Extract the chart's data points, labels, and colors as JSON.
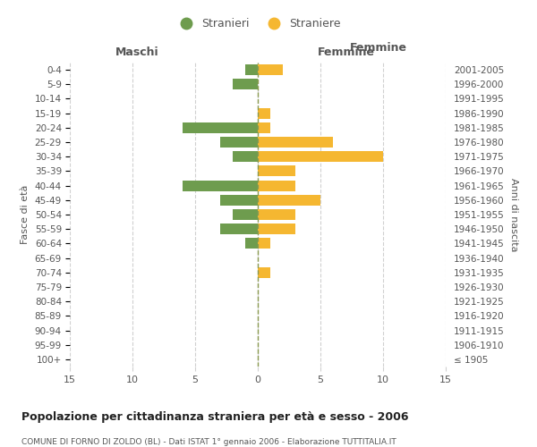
{
  "age_groups": [
    "100+",
    "95-99",
    "90-94",
    "85-89",
    "80-84",
    "75-79",
    "70-74",
    "65-69",
    "60-64",
    "55-59",
    "50-54",
    "45-49",
    "40-44",
    "35-39",
    "30-34",
    "25-29",
    "20-24",
    "15-19",
    "10-14",
    "5-9",
    "0-4"
  ],
  "birth_years": [
    "≤ 1905",
    "1906-1910",
    "1911-1915",
    "1916-1920",
    "1921-1925",
    "1926-1930",
    "1931-1935",
    "1936-1940",
    "1941-1945",
    "1946-1950",
    "1951-1955",
    "1956-1960",
    "1961-1965",
    "1966-1970",
    "1971-1975",
    "1976-1980",
    "1981-1985",
    "1986-1990",
    "1991-1995",
    "1996-2000",
    "2001-2005"
  ],
  "males": [
    0,
    0,
    0,
    0,
    0,
    0,
    0,
    0,
    -1,
    -3,
    -2,
    -3,
    -6,
    0,
    -2,
    -3,
    -6,
    0,
    0,
    -2,
    -1
  ],
  "females": [
    0,
    0,
    0,
    0,
    0,
    0,
    1,
    0,
    1,
    3,
    3,
    5,
    3,
    3,
    10,
    6,
    1,
    1,
    0,
    0,
    2
  ],
  "male_color": "#6e9c4e",
  "female_color": "#f5b731",
  "title": "Popolazione per cittadinanza straniera per età e sesso - 2006",
  "subtitle": "COMUNE DI FORNO DI ZOLDO (BL) - Dati ISTAT 1° gennaio 2006 - Elaborazione TUTTITALIA.IT",
  "xlabel_left": "Maschi",
  "xlabel_right": "Femmine",
  "ylabel_left": "Fasce di età",
  "ylabel_right": "Anni di nascita",
  "legend_male": "Stranieri",
  "legend_female": "Straniere",
  "xlim": [
    -15,
    15
  ],
  "xticks": [
    -15,
    -10,
    -5,
    0,
    5,
    10,
    15
  ],
  "xtick_labels": [
    "15",
    "10",
    "5",
    "0",
    "5",
    "10",
    "15"
  ],
  "bar_height": 0.75,
  "background_color": "#ffffff",
  "grid_color": "#d0d0d0",
  "center_line_color": "#8a9a50",
  "text_color": "#555555",
  "title_color": "#222222",
  "subtitle_color": "#555555"
}
